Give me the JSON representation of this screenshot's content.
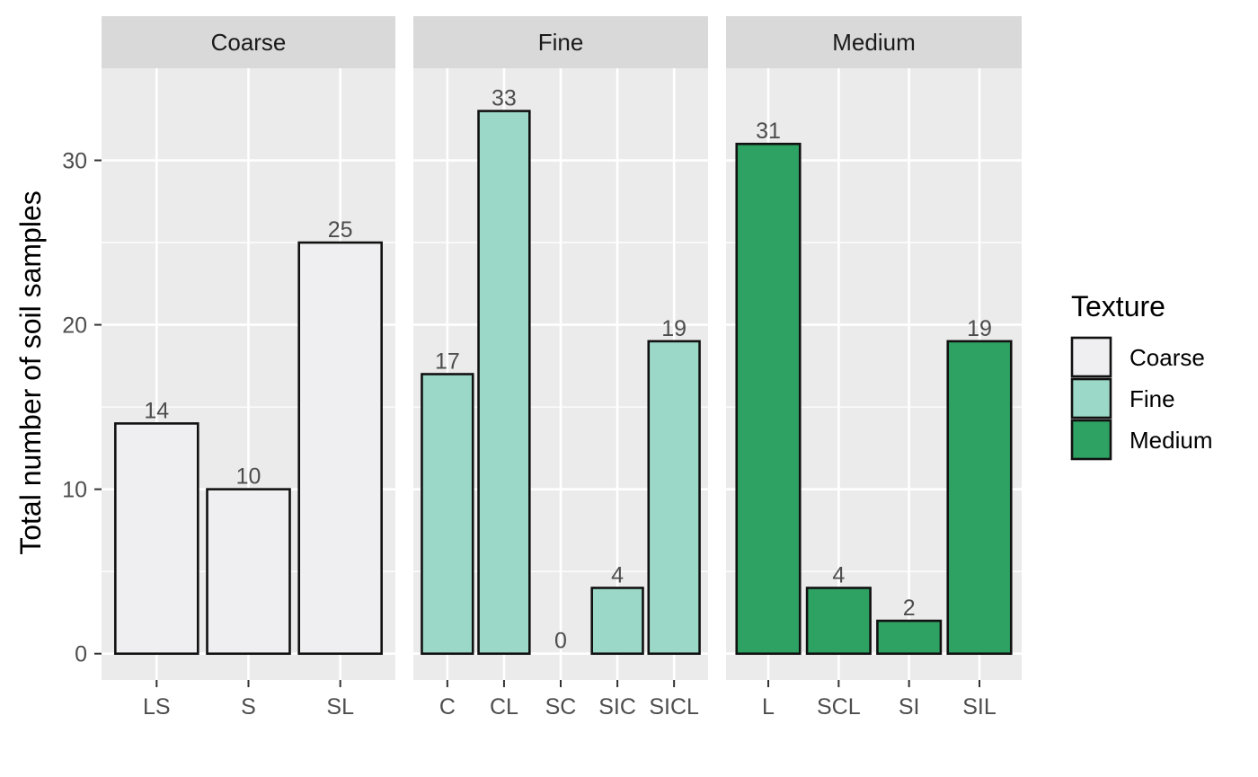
{
  "chart_data": {
    "type": "bar",
    "ylabel": "Total number of soil samples",
    "xlabel": "",
    "ylim": [
      -1.6,
      35.6
    ],
    "y_ticks": [
      0,
      10,
      20,
      30
    ],
    "grid": true,
    "legend": {
      "title": "Texture",
      "placement": "right",
      "entries": [
        "Coarse",
        "Fine",
        "Medium"
      ]
    },
    "colors": {
      "Coarse": "#efeff1",
      "Fine": "#9bd8c8",
      "Medium": "#2da262"
    },
    "facets": [
      {
        "name": "Coarse",
        "categories": [
          "LS",
          "S",
          "SL"
        ],
        "values": [
          14,
          10,
          25
        ]
      },
      {
        "name": "Fine",
        "categories": [
          "C",
          "CL",
          "SC",
          "SIC",
          "SICL"
        ],
        "values": [
          17,
          33,
          0,
          4,
          19
        ]
      },
      {
        "name": "Medium",
        "categories": [
          "L",
          "SCL",
          "SI",
          "SIL"
        ],
        "values": [
          31,
          4,
          2,
          19
        ]
      }
    ]
  }
}
